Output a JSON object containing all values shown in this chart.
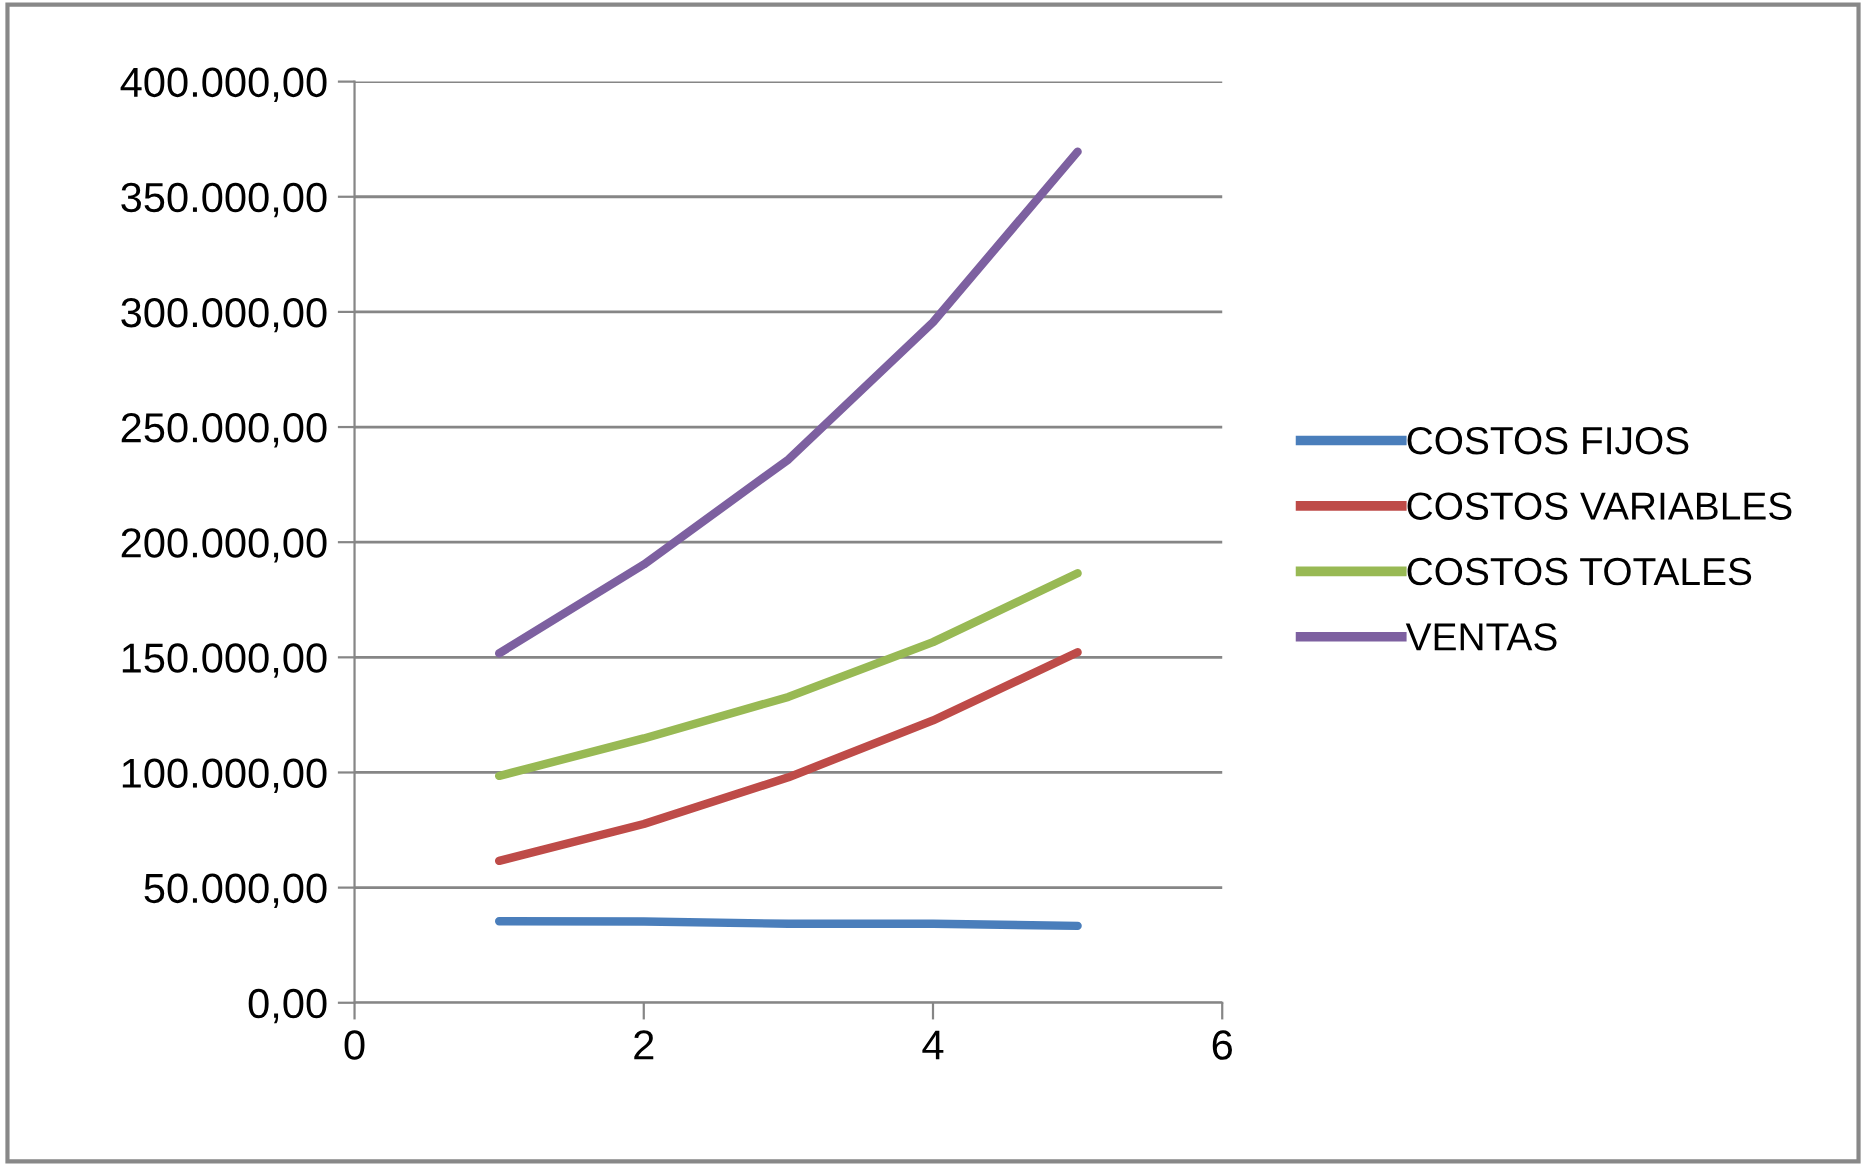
{
  "chart_data": {
    "type": "line",
    "x": [
      1,
      2,
      3,
      4,
      5
    ],
    "series": [
      {
        "name": "COSTOS FIJOS",
        "color": "#4a7ebb",
        "values": [
          35400,
          35300,
          34300,
          34300,
          33400
        ]
      },
      {
        "name": "COSTOS VARIABLES",
        "color": "#be4b48",
        "values": [
          61600,
          77600,
          97900,
          122600,
          152200
        ]
      },
      {
        "name": "COSTOS TOTALES",
        "color": "#98b954",
        "values": [
          98500,
          114800,
          132800,
          156600,
          186500
        ]
      },
      {
        "name": "VENTAS",
        "color": "#7d60a0",
        "values": [
          151700,
          190300,
          235900,
          295500,
          369600
        ]
      }
    ],
    "xlim": [
      0,
      6
    ],
    "xticks": [
      0,
      2,
      4,
      6
    ],
    "ylim": [
      0,
      400000
    ],
    "yticks": [
      {
        "value": 0,
        "label": "0,00"
      },
      {
        "value": 50000,
        "label": "50.000,00"
      },
      {
        "value": 100000,
        "label": "100.000,00"
      },
      {
        "value": 150000,
        "label": "150.000,00"
      },
      {
        "value": 200000,
        "label": "200.000,00"
      },
      {
        "value": 250000,
        "label": "250.000,00"
      },
      {
        "value": 300000,
        "label": "300.000,00"
      },
      {
        "value": 350000,
        "label": "350.000,00"
      },
      {
        "value": 400000,
        "label": "400.000,00"
      }
    ],
    "grid": "y",
    "legend": "right",
    "marker": "none",
    "line_style": "solid"
  }
}
